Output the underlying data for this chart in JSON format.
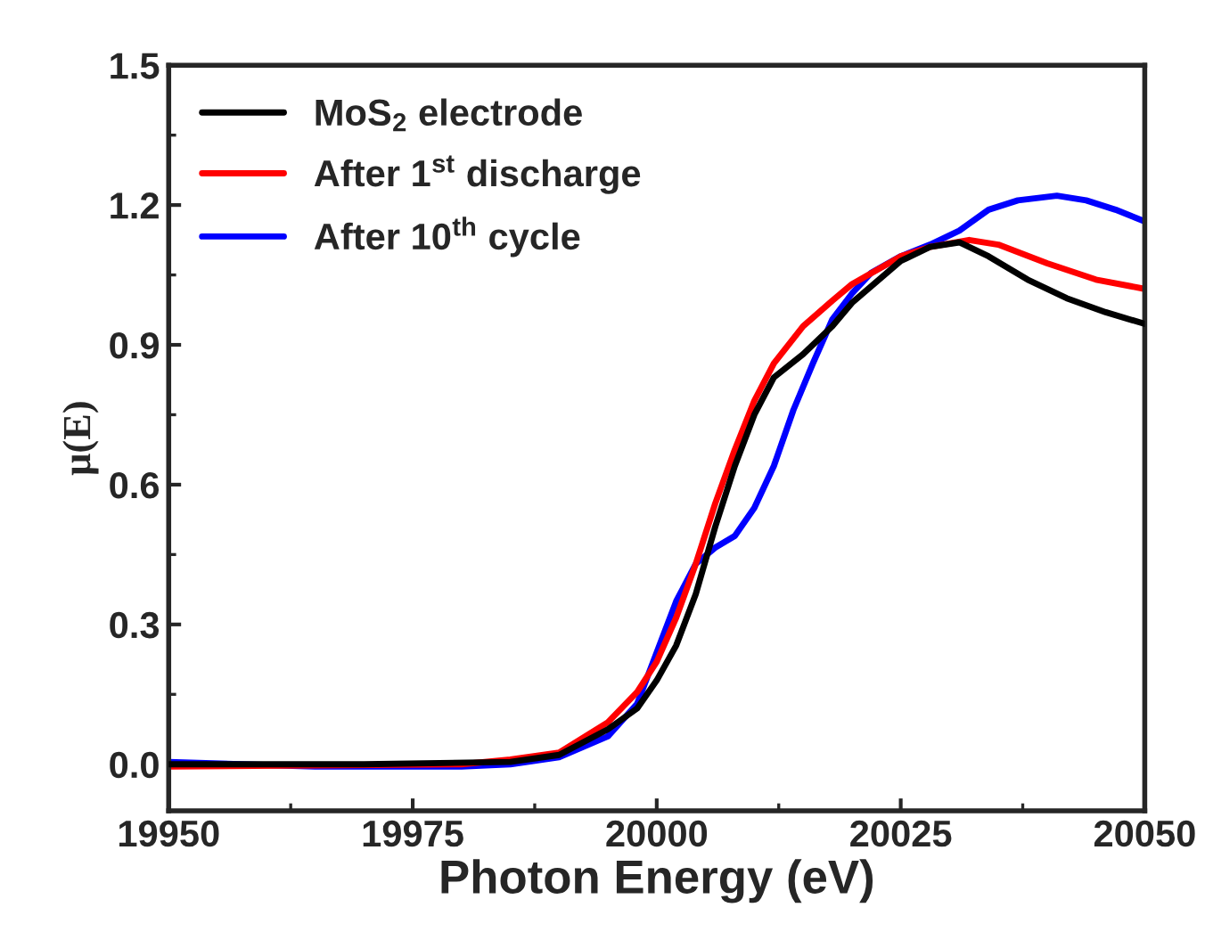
{
  "chart_data": {
    "type": "line",
    "xlabel": "Photon Energy (eV)",
    "ylabel": "μ(E)",
    "xlim": [
      19950,
      20050
    ],
    "xticks": [
      19950,
      19975,
      20000,
      20025,
      20050
    ],
    "ylim": [
      -0.1,
      1.5
    ],
    "yticks": [
      {
        "value": 0.0,
        "label": "0.0"
      },
      {
        "value": 0.3,
        "label": "0.3"
      },
      {
        "value": 0.6,
        "label": "0.6"
      },
      {
        "value": 0.9,
        "label": "0.9"
      },
      {
        "value": 1.2,
        "label": "1.2"
      },
      {
        "value": 1.5,
        "label": "1.5"
      }
    ],
    "legend": "top left",
    "grid": false,
    "marker": "none",
    "line_style": "solid",
    "series": [
      {
        "name": "MoS$_{2}$ electrode",
        "color": "#000000",
        "x": [
          19950,
          19970,
          19985,
          19990,
          19995,
          19998,
          20000,
          20002,
          20004,
          20006,
          20008,
          20010,
          20012,
          20015,
          20018,
          20020,
          20025,
          20028,
          20031,
          20034,
          20038,
          20042,
          20046,
          20050
        ],
        "values": [
          0.0,
          0.0,
          0.005,
          0.02,
          0.075,
          0.12,
          0.18,
          0.255,
          0.365,
          0.51,
          0.64,
          0.75,
          0.83,
          0.88,
          0.94,
          0.99,
          1.08,
          1.11,
          1.12,
          1.09,
          1.04,
          1.0,
          0.97,
          0.945
        ]
      },
      {
        "name": "After 1$^{st}$ discharge",
        "color": "#ff0000",
        "x": [
          19950,
          19980,
          19985,
          19990,
          19995,
          19998,
          20000,
          20002,
          20004,
          20006,
          20008,
          20010,
          20012,
          20015,
          20018,
          20020,
          20025,
          20028,
          20032,
          20035,
          20040,
          20045,
          20050
        ],
        "values": [
          -0.005,
          0.0,
          0.01,
          0.025,
          0.09,
          0.155,
          0.22,
          0.315,
          0.43,
          0.56,
          0.675,
          0.78,
          0.86,
          0.94,
          0.995,
          1.03,
          1.09,
          1.11,
          1.125,
          1.115,
          1.075,
          1.04,
          1.02
        ]
      },
      {
        "name": "After 10$^{th}$ cycle",
        "color": "#0000ff",
        "x": [
          19950,
          19965,
          19980,
          19985,
          19990,
          19995,
          19998,
          20000,
          20002,
          20004,
          20006,
          20008,
          20010,
          20012,
          20014,
          20016,
          20018,
          20020,
          20022,
          20025,
          20028,
          20031,
          20034,
          20037,
          20041,
          20044,
          20047,
          20050
        ],
        "values": [
          0.005,
          -0.005,
          -0.005,
          0.0,
          0.015,
          0.06,
          0.13,
          0.24,
          0.35,
          0.43,
          0.465,
          0.49,
          0.55,
          0.64,
          0.76,
          0.86,
          0.955,
          1.01,
          1.055,
          1.09,
          1.115,
          1.145,
          1.19,
          1.21,
          1.22,
          1.21,
          1.19,
          1.165
        ]
      }
    ]
  }
}
